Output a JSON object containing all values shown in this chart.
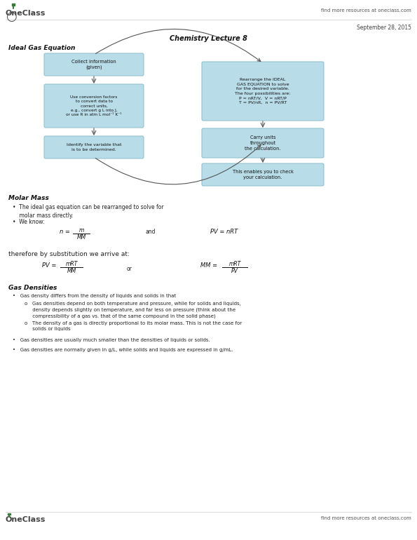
{
  "title": "Chemistry Lecture 8",
  "date": "September 28, 2015",
  "header_tagline": "find more resources at oneclass.com",
  "section1_title": "Ideal Gas Equation",
  "box_color": "#b8dce8",
  "box_edge_color": "#8bbccc",
  "section2_title": "Molar Mass",
  "section3_title": "Gas Densities",
  "footer_tagline": "find more resources at oneclass.com",
  "bg_color": "#ffffff",
  "text_color": "#222222"
}
